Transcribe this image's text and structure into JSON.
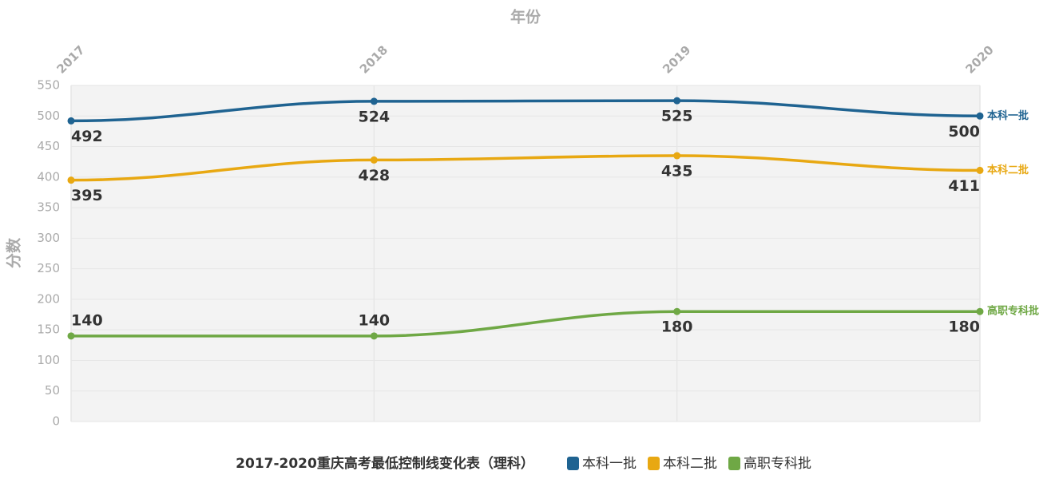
{
  "chart_data": {
    "type": "line",
    "title": "2017-2020重庆高考最低控制线变化表（理科）",
    "x_label": "年份",
    "y_label": "分数",
    "categories": [
      "2017",
      "2018",
      "2019",
      "2020"
    ],
    "series": [
      {
        "name": "本科一批",
        "color": "#1f6391",
        "values": [
          492,
          524,
          525,
          500
        ]
      },
      {
        "name": "本科二批",
        "color": "#e8a812",
        "values": [
          395,
          428,
          435,
          411
        ]
      },
      {
        "name": "高职专科批",
        "color": "#6fa845",
        "values": [
          140,
          140,
          180,
          180
        ]
      }
    ],
    "ylim": [
      0,
      550
    ],
    "yticks": [
      0,
      50,
      100,
      150,
      200,
      250,
      300,
      350,
      400,
      450,
      500,
      550
    ],
    "grid": true
  }
}
